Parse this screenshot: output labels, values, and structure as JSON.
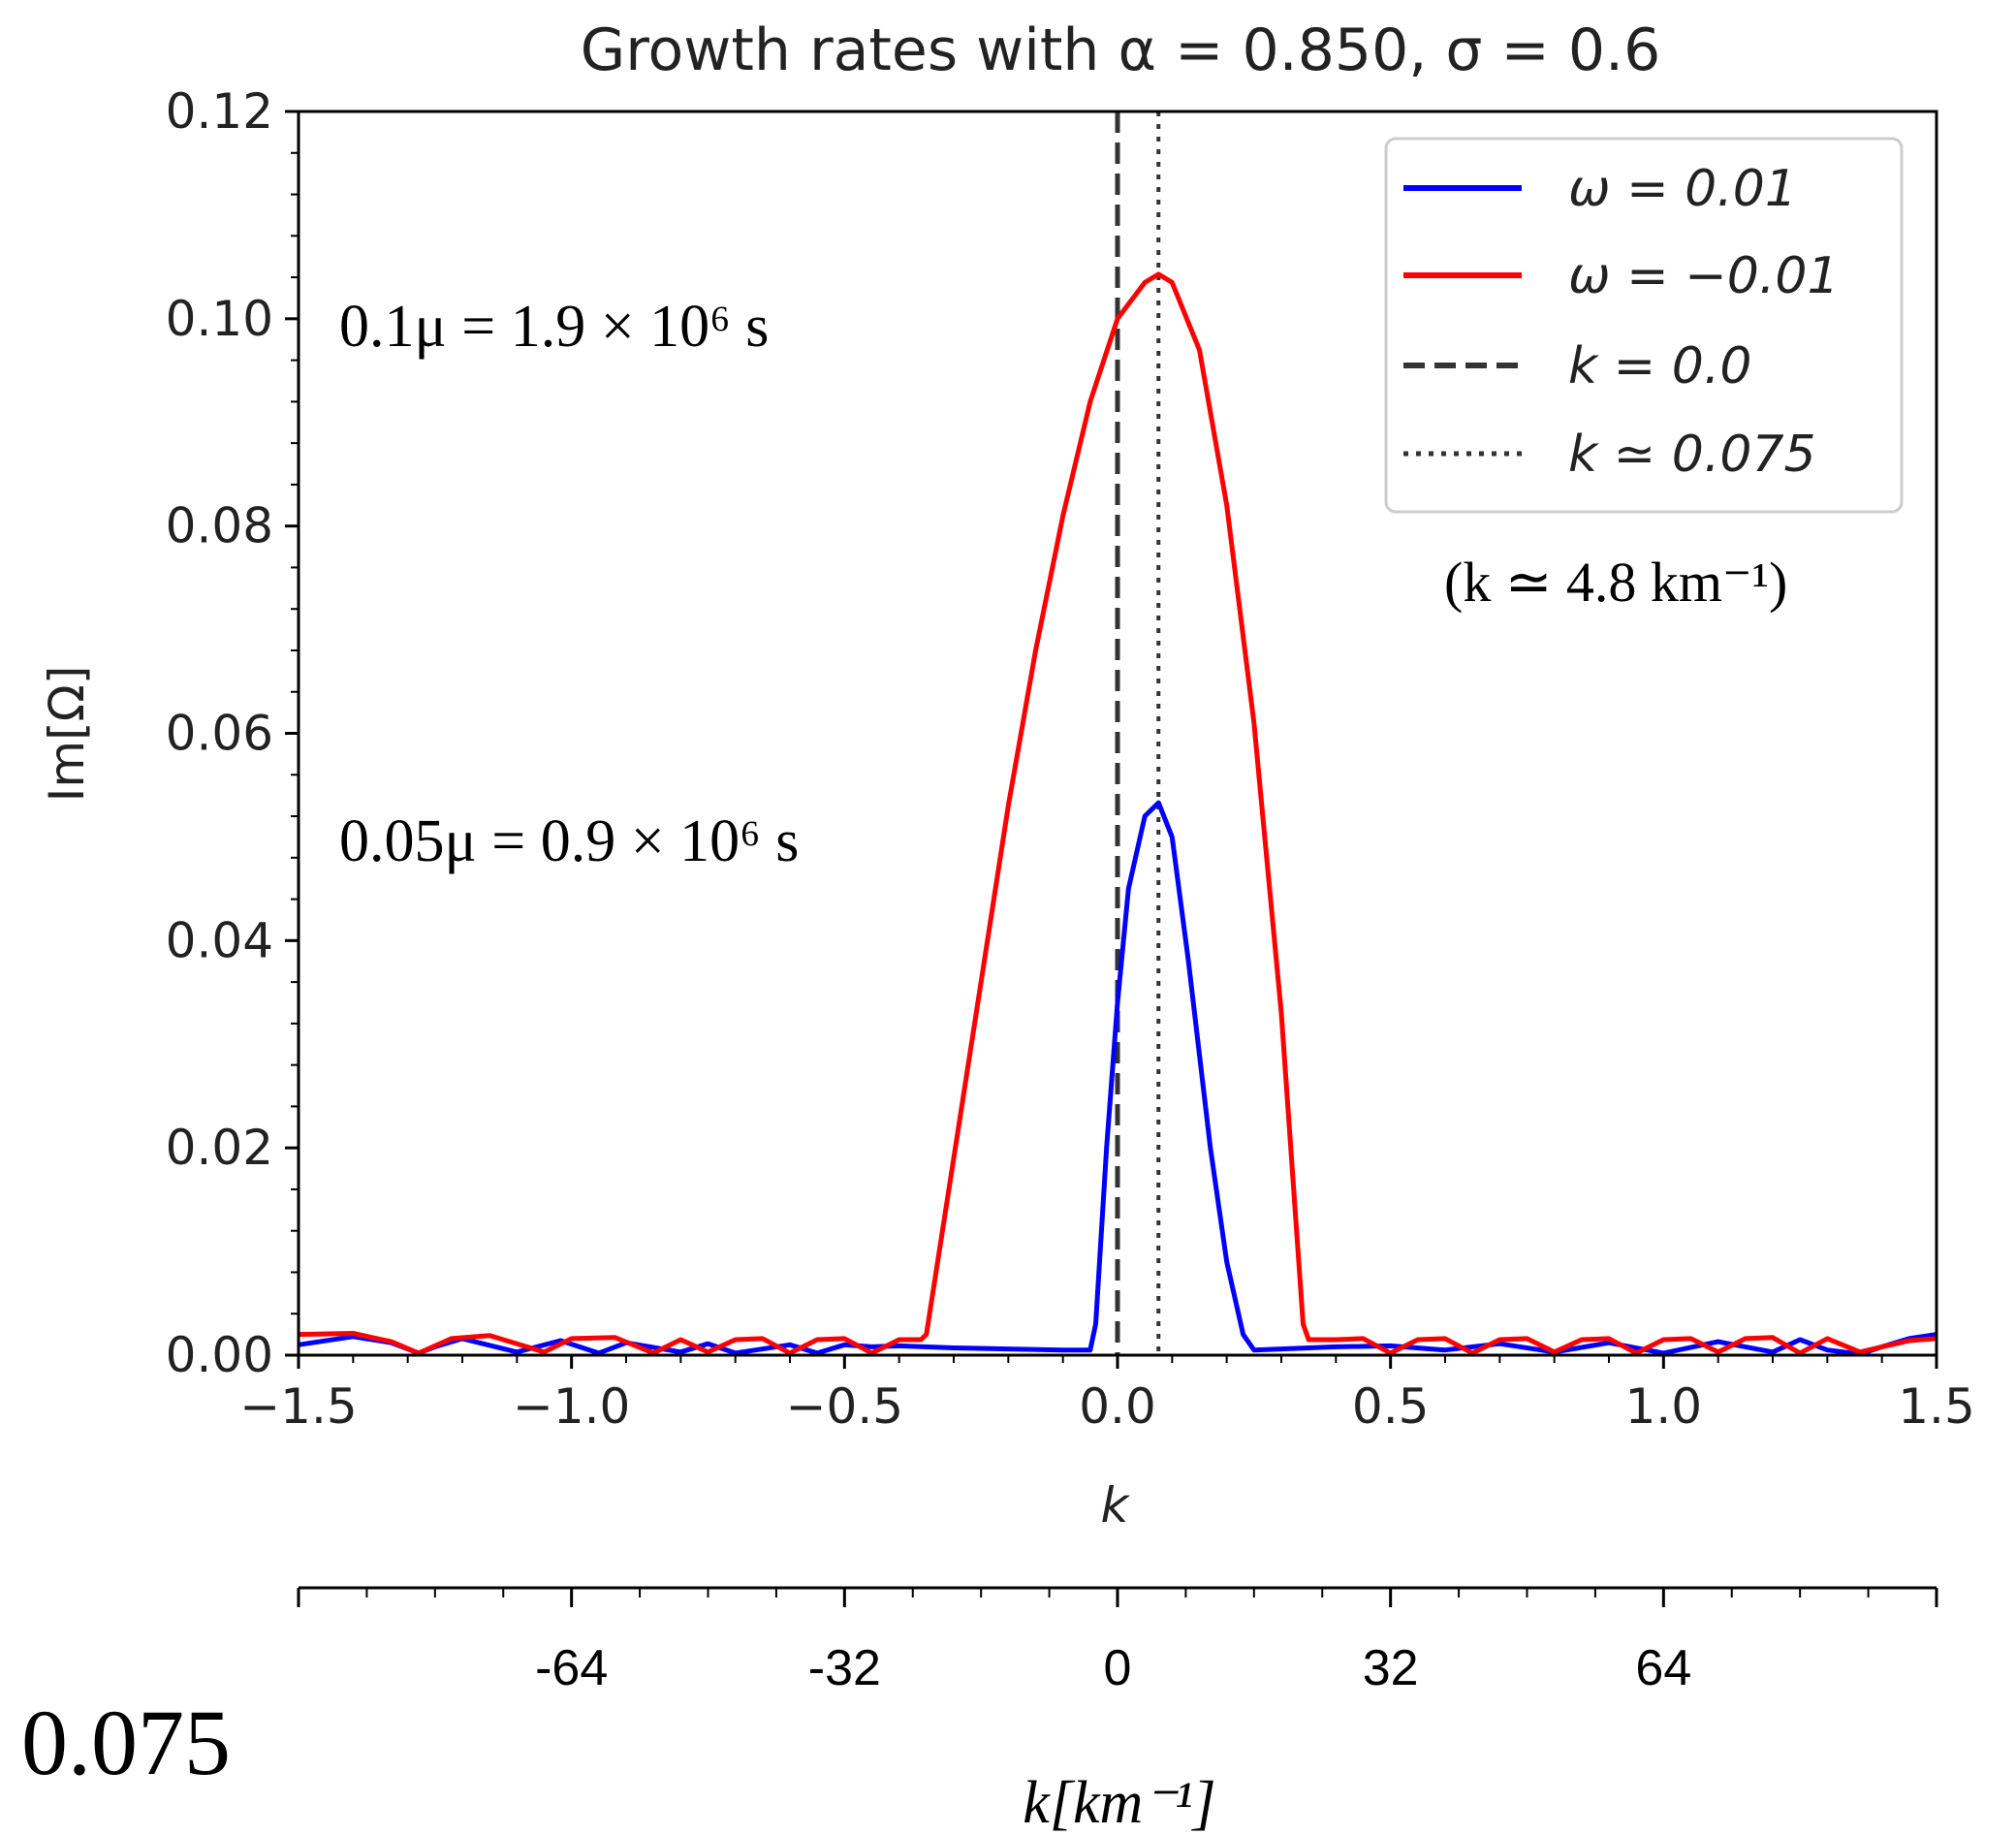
{
  "chart_data": [
    {
      "type": "line",
      "title": "Growth rates with α = 0.850, σ = 0.6",
      "xlabel": "k",
      "ylabel": "Im[Ω]",
      "xlim": [
        -1.5,
        1.5
      ],
      "ylim": [
        0,
        0.12
      ],
      "xticks": [
        "−1.5",
        "−1.0",
        "−0.5",
        "0.0",
        "0.5",
        "1.0",
        "1.5"
      ],
      "yticks": [
        "0.00",
        "0.02",
        "0.04",
        "0.06",
        "0.08",
        "0.10",
        "0.12"
      ],
      "legend_position": "top-right",
      "series": [
        {
          "name": "ω = 0.01",
          "color": "#0000ff",
          "x": [
            -1.5,
            -1.4,
            -1.33,
            -1.28,
            -1.25,
            -1.2,
            -1.1,
            -1.02,
            -0.95,
            -0.9,
            -0.8,
            -0.75,
            -0.7,
            -0.6,
            -0.55,
            -0.5,
            -0.45,
            -0.4,
            -0.3,
            -0.2,
            -0.1,
            -0.05,
            -0.04,
            -0.02,
            0.0,
            0.02,
            0.05,
            0.075,
            0.1,
            0.13,
            0.17,
            0.2,
            0.23,
            0.25,
            0.3,
            0.4,
            0.5,
            0.6,
            0.7,
            0.8,
            0.9,
            1.0,
            1.1,
            1.2,
            1.25,
            1.3,
            1.36,
            1.4,
            1.45,
            1.5
          ],
          "values": [
            0.001,
            0.0018,
            0.0012,
            0.0002,
            0.0008,
            0.0016,
            0.0003,
            0.0014,
            0.0002,
            0.0012,
            0.0003,
            0.0011,
            0.0002,
            0.001,
            0.0002,
            0.001,
            0.0008,
            0.0009,
            0.0007,
            0.0006,
            0.0005,
            0.0005,
            0.003,
            0.02,
            0.034,
            0.045,
            0.052,
            0.0533,
            0.05,
            0.038,
            0.02,
            0.009,
            0.002,
            0.0005,
            0.0006,
            0.0008,
            0.0009,
            0.0005,
            0.0011,
            0.0003,
            0.0012,
            0.0002,
            0.0013,
            0.0003,
            0.0015,
            0.0005,
            0.0001,
            0.0008,
            0.0016,
            0.002
          ]
        },
        {
          "name": "ω = −0.01",
          "color": "#ff0000",
          "x": [
            -1.5,
            -1.4,
            -1.33,
            -1.28,
            -1.22,
            -1.15,
            -1.05,
            -1.0,
            -0.92,
            -0.85,
            -0.8,
            -0.75,
            -0.7,
            -0.65,
            -0.6,
            -0.55,
            -0.5,
            -0.45,
            -0.4,
            -0.36,
            -0.35,
            -0.3,
            -0.25,
            -0.2,
            -0.15,
            -0.1,
            -0.05,
            0.0,
            0.05,
            0.075,
            0.1,
            0.15,
            0.2,
            0.25,
            0.3,
            0.34,
            0.35,
            0.4,
            0.45,
            0.5,
            0.55,
            0.6,
            0.65,
            0.7,
            0.75,
            0.8,
            0.85,
            0.9,
            0.95,
            1.0,
            1.05,
            1.1,
            1.15,
            1.2,
            1.25,
            1.3,
            1.36,
            1.4,
            1.45,
            1.5
          ],
          "values": [
            0.002,
            0.0021,
            0.0013,
            0.0002,
            0.0016,
            0.0019,
            0.0003,
            0.0016,
            0.0017,
            0.0002,
            0.0015,
            0.0003,
            0.0015,
            0.0016,
            0.0002,
            0.0015,
            0.0016,
            0.0002,
            0.0015,
            0.0015,
            0.002,
            0.019,
            0.036,
            0.053,
            0.068,
            0.081,
            0.092,
            0.1,
            0.1035,
            0.1043,
            0.1035,
            0.097,
            0.082,
            0.061,
            0.033,
            0.003,
            0.0015,
            0.0015,
            0.0016,
            0.0002,
            0.0015,
            0.0016,
            0.0002,
            0.0015,
            0.0016,
            0.0003,
            0.0015,
            0.0016,
            0.0002,
            0.0015,
            0.0016,
            0.0003,
            0.0016,
            0.0017,
            0.0002,
            0.0016,
            0.0003,
            0.0008,
            0.0014,
            0.0016
          ]
        }
      ],
      "vlines": [
        {
          "name": "k = 0.0",
          "x": 0.0,
          "style": "dashed",
          "color": "#333333"
        },
        {
          "name": "k ≃ 0.075",
          "x": 0.075,
          "style": "dotted",
          "color": "#333333"
        }
      ]
    },
    {
      "type": "line",
      "xlabel": "k[km⁻¹]",
      "xlim": [
        -96,
        96
      ],
      "xticks": [
        "-64",
        "-32",
        "0",
        "32",
        "64"
      ],
      "xtick_values": [
        -64,
        -32,
        0,
        32,
        64
      ]
    }
  ],
  "annotations": {
    "growth_red": "0.1μ = 1.9 × 10⁶ s",
    "growth_blue": "0.05μ = 0.9 × 10⁶ s",
    "k_physical": "(k ≃ 4.8 km⁻¹)",
    "corner_label": "0.075"
  }
}
